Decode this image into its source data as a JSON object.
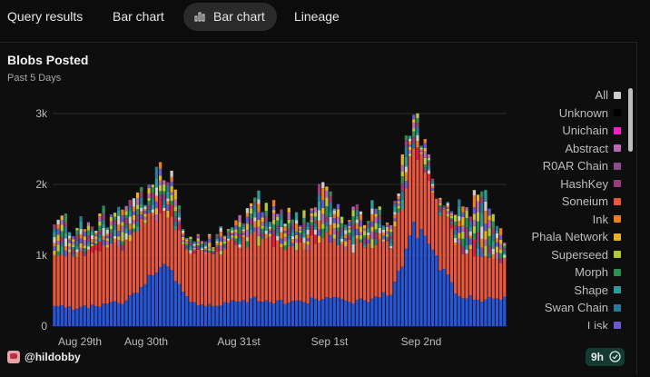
{
  "tabs": [
    {
      "label": "Query results",
      "active": false
    },
    {
      "label": "Bar chart",
      "active": false
    },
    {
      "label": "Bar chart",
      "active": true,
      "icon": "bar-chart-icon"
    },
    {
      "label": "Lineage",
      "active": false
    }
  ],
  "chart": {
    "title": "Blobs Posted",
    "subtitle": "Past 5 Days"
  },
  "legend": [
    {
      "label": "All",
      "color": "#cccccc"
    },
    {
      "label": "Unknown",
      "color": "#000000"
    },
    {
      "label": "Unichain",
      "color": "#ff1ec8"
    },
    {
      "label": "Abstract",
      "color": "#b86ab0"
    },
    {
      "label": "R0AR Chain",
      "color": "#8b4f8b"
    },
    {
      "label": "HashKey",
      "color": "#9a3b7c"
    },
    {
      "label": "Soneium",
      "color": "#e8573f"
    },
    {
      "label": "Ink",
      "color": "#ef7d1e"
    },
    {
      "label": "Phala Network",
      "color": "#e8b321"
    },
    {
      "label": "Superseed",
      "color": "#b7c93a"
    },
    {
      "label": "Morph",
      "color": "#2e8f55"
    },
    {
      "label": "Shape",
      "color": "#2a9d9d"
    },
    {
      "label": "Swan Chain",
      "color": "#2a7a9a"
    },
    {
      "label": "Lisk",
      "color": "#6a5acd"
    }
  ],
  "footer": {
    "username": "@hildobby",
    "refresh_badge": "9h"
  },
  "chart_data": {
    "type": "bar",
    "stacked": true,
    "title": "Blobs Posted",
    "subtitle": "Past 5 Days",
    "x_tick_labels": [
      "Aug 29th",
      "Aug 30th",
      "Aug 31st",
      "Sep 1st",
      "Sep 2nd"
    ],
    "y_tick_labels": [
      "0",
      "1k",
      "2k",
      "3k"
    ],
    "ylim": [
      0,
      3000
    ],
    "grid": true,
    "legend_position": "right",
    "approx_series": {
      "base_blue_values": [
        280,
        250,
        300,
        330,
        600,
        900,
        330,
        300,
        350,
        380,
        340,
        330,
        420,
        330,
        380,
        480,
        1400,
        900,
        420,
        370,
        410
      ],
      "orange_values": [
        780,
        760,
        800,
        800,
        900,
        700,
        700,
        750,
        820,
        850,
        800,
        780,
        850,
        800,
        800,
        700,
        1100,
        800,
        700,
        650,
        500
      ],
      "total_values": [
        1450,
        1400,
        1550,
        1600,
        1800,
        2300,
        1200,
        1250,
        1500,
        1800,
        1600,
        1500,
        1900,
        1600,
        1600,
        1550,
        3000,
        2000,
        1700,
        1800,
        1300
      ]
    }
  }
}
